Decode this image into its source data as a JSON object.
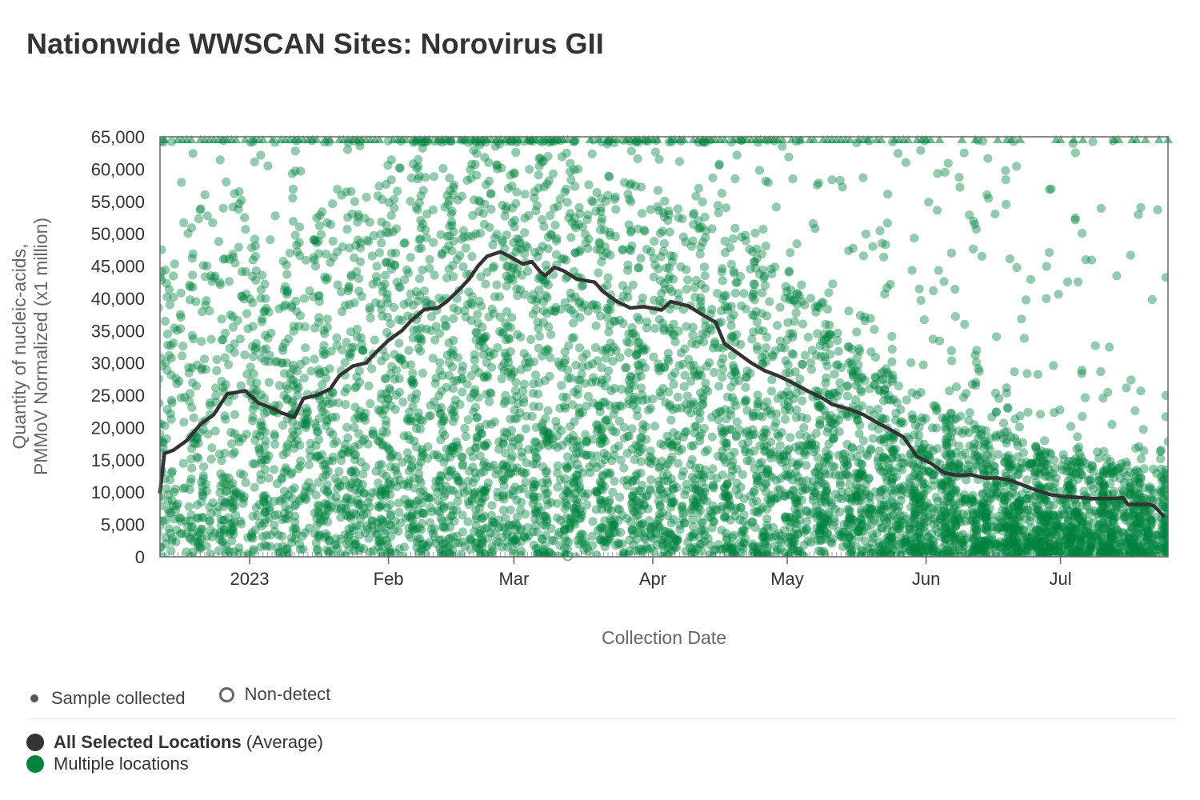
{
  "title": "Nationwide WWSCAN Sites: Norovirus GII",
  "legend": {
    "markers": [
      {
        "label": "Sample collected",
        "icon": "filled-dot-icon"
      },
      {
        "label": "Non-detect",
        "icon": "hollow-ring-icon"
      }
    ],
    "series": [
      {
        "name": "All Selected Locations",
        "suffix": "(Average)",
        "color": "#333333"
      },
      {
        "name": "Multiple locations",
        "suffix": "",
        "color": "#00843d"
      }
    ]
  },
  "chart_data": {
    "type": "scatter",
    "title": "Nationwide WWSCAN Sites: Norovirus GII",
    "xlabel": "Collection Date",
    "ylabel_lines": [
      "Quantity of nucleic-acids,",
      "PMMoV Normalized (x1 million)"
    ],
    "x_range": [
      "2022-12-12",
      "2023-07-25"
    ],
    "ylim": [
      0,
      65000
    ],
    "y_ticks": [
      0,
      5000,
      10000,
      15000,
      20000,
      25000,
      30000,
      35000,
      40000,
      45000,
      50000,
      55000,
      60000,
      65000
    ],
    "y_tick_labels": [
      "0",
      "5,000",
      "10,000",
      "15,000",
      "20,000",
      "25,000",
      "30,000",
      "35,000",
      "40,000",
      "45,000",
      "50,000",
      "55,000",
      "60,000",
      "65,000"
    ],
    "x_ticks": [
      {
        "date": "2023-01-01",
        "label": "2023"
      },
      {
        "date": "2023-02-01",
        "label": "Feb"
      },
      {
        "date": "2023-03-01",
        "label": "Mar"
      },
      {
        "date": "2023-04-01",
        "label": "Apr"
      },
      {
        "date": "2023-05-01",
        "label": "May"
      },
      {
        "date": "2023-06-01",
        "label": "Jun"
      },
      {
        "date": "2023-07-01",
        "label": "Jul"
      }
    ],
    "grid": false,
    "colors": {
      "points": "#00843d",
      "average": "#333333",
      "frame": "#666666"
    },
    "series": [
      {
        "name": "All Selected Locations",
        "kind": "line",
        "points": [
          [
            "2022-12-12",
            10000
          ],
          [
            "2022-12-13",
            16000
          ],
          [
            "2022-12-15",
            16500
          ],
          [
            "2022-12-18",
            18000
          ],
          [
            "2022-12-21",
            20500
          ],
          [
            "2022-12-24",
            22000
          ],
          [
            "2022-12-27",
            25200
          ],
          [
            "2022-12-31",
            25700
          ],
          [
            "2023-01-03",
            23800
          ],
          [
            "2023-01-06",
            23000
          ],
          [
            "2023-01-08",
            22300
          ],
          [
            "2023-01-11",
            21600
          ],
          [
            "2023-01-13",
            24500
          ],
          [
            "2023-01-16",
            25000
          ],
          [
            "2023-01-19",
            26000
          ],
          [
            "2023-01-21",
            28000
          ],
          [
            "2023-01-24",
            29500
          ],
          [
            "2023-01-27",
            30000
          ],
          [
            "2023-01-29",
            31500
          ],
          [
            "2023-02-01",
            33500
          ],
          [
            "2023-02-04",
            35000
          ],
          [
            "2023-02-06",
            36500
          ],
          [
            "2023-02-09",
            38300
          ],
          [
            "2023-02-12",
            38500
          ],
          [
            "2023-02-14",
            39500
          ],
          [
            "2023-02-17",
            41500
          ],
          [
            "2023-02-19",
            43000
          ],
          [
            "2023-02-21",
            45000
          ],
          [
            "2023-02-23",
            46500
          ],
          [
            "2023-02-26",
            47200
          ],
          [
            "2023-02-28",
            46500
          ],
          [
            "2023-03-03",
            45300
          ],
          [
            "2023-03-05",
            45700
          ],
          [
            "2023-03-07",
            44000
          ],
          [
            "2023-03-08",
            43500
          ],
          [
            "2023-03-10",
            44800
          ],
          [
            "2023-03-12",
            44300
          ],
          [
            "2023-03-15",
            43000
          ],
          [
            "2023-03-19",
            42500
          ],
          [
            "2023-03-21",
            41000
          ],
          [
            "2023-03-24",
            39500
          ],
          [
            "2023-03-27",
            38500
          ],
          [
            "2023-03-30",
            38700
          ],
          [
            "2023-04-03",
            38200
          ],
          [
            "2023-04-05",
            39500
          ],
          [
            "2023-04-09",
            38800
          ],
          [
            "2023-04-12",
            37500
          ],
          [
            "2023-04-15",
            36300
          ],
          [
            "2023-04-17",
            33000
          ],
          [
            "2023-04-20",
            31500
          ],
          [
            "2023-04-23",
            30000
          ],
          [
            "2023-04-26",
            28800
          ],
          [
            "2023-04-29",
            28000
          ],
          [
            "2023-05-02",
            27000
          ],
          [
            "2023-05-06",
            25500
          ],
          [
            "2023-05-09",
            24500
          ],
          [
            "2023-05-11",
            23600
          ],
          [
            "2023-05-15",
            22800
          ],
          [
            "2023-05-18",
            22000
          ],
          [
            "2023-05-21",
            20800
          ],
          [
            "2023-05-24",
            19700
          ],
          [
            "2023-05-27",
            18500
          ],
          [
            "2023-05-30",
            15500
          ],
          [
            "2023-06-02",
            14500
          ],
          [
            "2023-06-05",
            13000
          ],
          [
            "2023-06-08",
            12600
          ],
          [
            "2023-06-11",
            12700
          ],
          [
            "2023-06-14",
            12200
          ],
          [
            "2023-06-17",
            12200
          ],
          [
            "2023-06-20",
            11800
          ],
          [
            "2023-06-23",
            11000
          ],
          [
            "2023-06-26",
            10200
          ],
          [
            "2023-06-29",
            9600
          ],
          [
            "2023-07-02",
            9300
          ],
          [
            "2023-07-05",
            9200
          ],
          [
            "2023-07-08",
            9000
          ],
          [
            "2023-07-11",
            9000
          ],
          [
            "2023-07-15",
            9100
          ],
          [
            "2023-07-16",
            8100
          ],
          [
            "2023-07-21",
            8100
          ],
          [
            "2023-07-22",
            7800
          ],
          [
            "2023-07-24",
            6300
          ]
        ]
      },
      {
        "name": "Multiple locations",
        "kind": "scatter",
        "description": "Thousands of individual site samples (translucent green dots); ceiling-clipped samples at 65,000 shown as triangles; non-detects as hollow rings near 0",
        "point_count_approx": 6500,
        "point_density_profile": [
          [
            "2022-12-12",
            0.55,
            28000
          ],
          [
            "2023-01-01",
            0.7,
            30000
          ],
          [
            "2023-02-01",
            0.9,
            38000
          ],
          [
            "2023-03-01",
            1.0,
            40000
          ],
          [
            "2023-04-01",
            0.95,
            36000
          ],
          [
            "2023-05-01",
            0.9,
            28000
          ],
          [
            "2023-06-01",
            1.0,
            15000
          ],
          [
            "2023-07-01",
            1.1,
            10000
          ],
          [
            "2023-07-25",
            0.9,
            9000
          ]
        ]
      }
    ]
  }
}
